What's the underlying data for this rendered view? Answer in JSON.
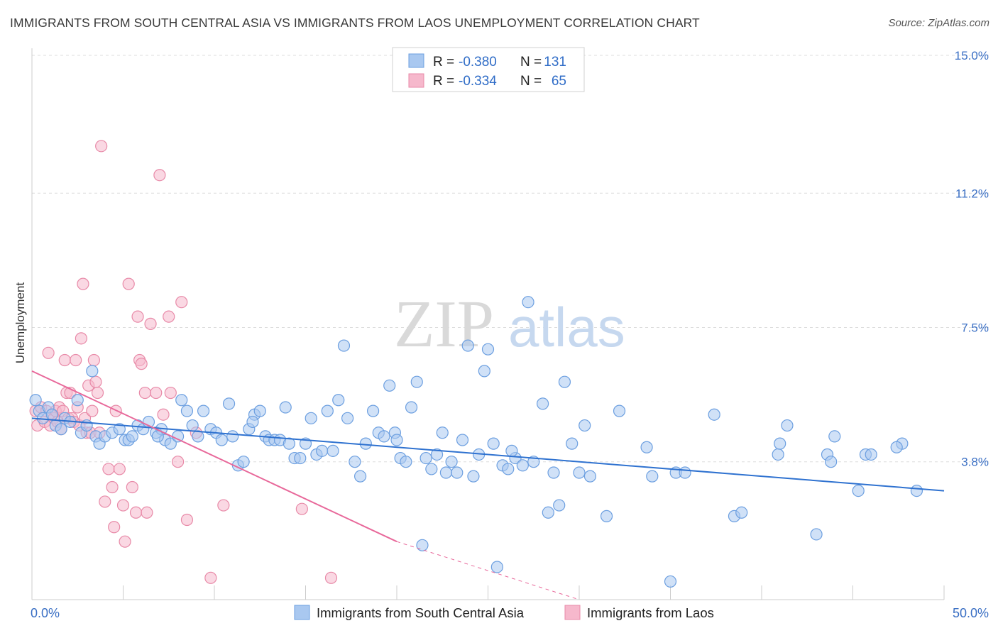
{
  "title": "IMMIGRANTS FROM SOUTH CENTRAL ASIA VS IMMIGRANTS FROM LAOS UNEMPLOYMENT CORRELATION CHART",
  "source": "Source: ZipAtlas.com",
  "watermark": {
    "zip": "ZIP",
    "atlas": "atlas"
  },
  "legend_top": [
    {
      "r_label": "R =",
      "r_value": "-0.380",
      "n_label": "N =",
      "n_value": "131"
    },
    {
      "r_label": "R =",
      "r_value": "-0.334",
      "n_label": "N =",
      "n_value": "65"
    }
  ],
  "colors": {
    "blue_fill": "#a9c8f0",
    "blue_stroke": "#6c9fe0",
    "blue_line": "#2f72d0",
    "pink_fill": "#f6b8cc",
    "pink_stroke": "#e88aa8",
    "pink_line": "#e8689a",
    "grid": "#dddddd",
    "tick_text": "#3a6fc4"
  },
  "chart_data": {
    "type": "scatter",
    "title": "IMMIGRANTS FROM SOUTH CENTRAL ASIA VS IMMIGRANTS FROM LAOS UNEMPLOYMENT CORRELATION CHART",
    "xlabel": "",
    "ylabel": "Unemployment",
    "xlim": [
      0,
      50
    ],
    "ylim": [
      0,
      15.0
    ],
    "x_tick_labels": [
      "0.0%",
      "50.0%"
    ],
    "y_ticks": [
      3.8,
      7.5,
      11.2,
      15.0
    ],
    "y_tick_labels": [
      "3.8%",
      "7.5%",
      "11.2%",
      "15.0%"
    ],
    "grid": true,
    "legend_position": "bottom",
    "series": [
      {
        "name": "Immigrants from South Central Asia",
        "color": "#a9c8f0",
        "trend": {
          "x0": 0,
          "y0": 5.0,
          "x1": 50,
          "y1": 3.0
        },
        "points": [
          [
            0.4,
            5.2
          ],
          [
            0.6,
            5.0
          ],
          [
            0.9,
            5.3
          ],
          [
            1.1,
            5.1
          ],
          [
            1.3,
            4.8
          ],
          [
            1.6,
            4.7
          ],
          [
            1.8,
            5.0
          ],
          [
            2.1,
            4.9
          ],
          [
            2.5,
            5.5
          ],
          [
            2.7,
            4.6
          ],
          [
            3.0,
            4.8
          ],
          [
            3.3,
            6.3
          ],
          [
            3.5,
            4.5
          ],
          [
            3.7,
            4.3
          ],
          [
            4.0,
            4.5
          ],
          [
            4.4,
            4.6
          ],
          [
            4.8,
            4.7
          ],
          [
            5.1,
            4.4
          ],
          [
            5.3,
            4.4
          ],
          [
            5.5,
            4.5
          ],
          [
            5.8,
            4.8
          ],
          [
            6.1,
            4.7
          ],
          [
            6.4,
            4.9
          ],
          [
            6.8,
            4.6
          ],
          [
            7.1,
            4.7
          ],
          [
            7.3,
            4.4
          ],
          [
            7.6,
            4.3
          ],
          [
            8.0,
            4.5
          ],
          [
            8.2,
            5.5
          ],
          [
            8.5,
            5.2
          ],
          [
            8.8,
            4.8
          ],
          [
            9.1,
            4.5
          ],
          [
            9.4,
            5.2
          ],
          [
            9.8,
            4.7
          ],
          [
            10.1,
            4.6
          ],
          [
            10.4,
            4.4
          ],
          [
            10.8,
            5.4
          ],
          [
            11.0,
            4.5
          ],
          [
            11.3,
            3.7
          ],
          [
            11.6,
            3.8
          ],
          [
            11.9,
            4.7
          ],
          [
            12.2,
            5.1
          ],
          [
            12.5,
            5.2
          ],
          [
            12.8,
            4.5
          ],
          [
            13.0,
            4.4
          ],
          [
            13.3,
            4.4
          ],
          [
            13.6,
            4.4
          ],
          [
            13.9,
            5.3
          ],
          [
            14.1,
            4.3
          ],
          [
            14.4,
            3.9
          ],
          [
            14.7,
            3.9
          ],
          [
            15.0,
            4.3
          ],
          [
            15.3,
            5.0
          ],
          [
            15.6,
            4.0
          ],
          [
            15.9,
            4.1
          ],
          [
            16.2,
            5.2
          ],
          [
            16.5,
            4.1
          ],
          [
            16.8,
            5.5
          ],
          [
            17.1,
            7.0
          ],
          [
            17.3,
            5.0
          ],
          [
            17.7,
            3.8
          ],
          [
            18.0,
            3.4
          ],
          [
            18.3,
            4.3
          ],
          [
            18.7,
            5.2
          ],
          [
            19.0,
            4.6
          ],
          [
            19.3,
            4.5
          ],
          [
            19.6,
            5.9
          ],
          [
            19.9,
            4.6
          ],
          [
            20.2,
            3.9
          ],
          [
            20.5,
            3.8
          ],
          [
            20.8,
            5.3
          ],
          [
            21.1,
            6.0
          ],
          [
            21.4,
            1.5
          ],
          [
            21.6,
            3.9
          ],
          [
            21.9,
            3.6
          ],
          [
            22.2,
            4.0
          ],
          [
            22.5,
            4.6
          ],
          [
            22.7,
            3.5
          ],
          [
            23.0,
            3.8
          ],
          [
            23.3,
            3.5
          ],
          [
            23.6,
            4.4
          ],
          [
            23.9,
            7.0
          ],
          [
            24.2,
            3.4
          ],
          [
            24.5,
            4.0
          ],
          [
            24.8,
            6.3
          ],
          [
            25.0,
            6.9
          ],
          [
            25.3,
            4.3
          ],
          [
            25.5,
            0.9
          ],
          [
            25.8,
            3.7
          ],
          [
            26.1,
            3.6
          ],
          [
            26.5,
            3.9
          ],
          [
            26.9,
            3.7
          ],
          [
            27.2,
            8.2
          ],
          [
            27.5,
            3.8
          ],
          [
            28.0,
            5.4
          ],
          [
            28.3,
            2.4
          ],
          [
            28.6,
            3.5
          ],
          [
            28.9,
            2.6
          ],
          [
            29.2,
            6.0
          ],
          [
            29.6,
            4.3
          ],
          [
            30.0,
            3.5
          ],
          [
            30.3,
            4.8
          ],
          [
            30.6,
            3.4
          ],
          [
            31.5,
            2.3
          ],
          [
            32.2,
            5.2
          ],
          [
            33.7,
            4.2
          ],
          [
            34.0,
            3.4
          ],
          [
            35.0,
            0.5
          ],
          [
            35.3,
            3.5
          ],
          [
            35.8,
            3.5
          ],
          [
            37.4,
            5.1
          ],
          [
            38.5,
            2.3
          ],
          [
            38.9,
            2.4
          ],
          [
            40.9,
            4.0
          ],
          [
            41.0,
            4.3
          ],
          [
            41.4,
            4.8
          ],
          [
            43.0,
            1.8
          ],
          [
            43.6,
            4.0
          ],
          [
            43.8,
            3.8
          ],
          [
            44.0,
            4.5
          ],
          [
            45.3,
            3.0
          ],
          [
            45.7,
            4.0
          ],
          [
            46.0,
            4.0
          ],
          [
            47.7,
            4.3
          ],
          [
            48.5,
            3.0
          ],
          [
            47.4,
            4.2
          ],
          [
            26.3,
            4.1
          ],
          [
            20.0,
            4.4
          ],
          [
            6.9,
            4.5
          ],
          [
            12.1,
            4.9
          ],
          [
            0.2,
            5.5
          ]
        ]
      },
      {
        "name": "Immigrants from Laos",
        "color": "#f6b8cc",
        "trend": {
          "x0": 0,
          "y0": 6.3,
          "x1": 20,
          "y1": 1.6,
          "x_dash_end": 30,
          "y_dash_end": 0
        },
        "points": [
          [
            0.2,
            5.2
          ],
          [
            0.3,
            4.8
          ],
          [
            0.5,
            5.3
          ],
          [
            0.7,
            4.9
          ],
          [
            0.8,
            5.2
          ],
          [
            1.0,
            4.8
          ],
          [
            1.1,
            5.1
          ],
          [
            1.2,
            5.0
          ],
          [
            1.3,
            5.2
          ],
          [
            1.4,
            4.9
          ],
          [
            1.5,
            5.3
          ],
          [
            1.6,
            4.7
          ],
          [
            1.7,
            5.2
          ],
          [
            1.8,
            6.6
          ],
          [
            1.9,
            5.7
          ],
          [
            2.0,
            5.0
          ],
          [
            2.1,
            5.7
          ],
          [
            2.2,
            5.0
          ],
          [
            2.3,
            4.9
          ],
          [
            2.4,
            6.6
          ],
          [
            2.5,
            5.3
          ],
          [
            2.6,
            4.8
          ],
          [
            2.7,
            7.2
          ],
          [
            2.8,
            8.7
          ],
          [
            2.9,
            5.0
          ],
          [
            3.0,
            4.6
          ],
          [
            3.1,
            5.9
          ],
          [
            3.2,
            4.6
          ],
          [
            3.3,
            5.2
          ],
          [
            3.4,
            6.6
          ],
          [
            3.5,
            6.0
          ],
          [
            3.6,
            5.7
          ],
          [
            3.7,
            4.6
          ],
          [
            3.8,
            12.5
          ],
          [
            4.0,
            2.7
          ],
          [
            4.2,
            3.6
          ],
          [
            4.4,
            3.1
          ],
          [
            4.5,
            2.0
          ],
          [
            4.6,
            5.2
          ],
          [
            4.8,
            3.6
          ],
          [
            5.0,
            2.6
          ],
          [
            5.1,
            1.6
          ],
          [
            5.3,
            8.7
          ],
          [
            5.5,
            3.1
          ],
          [
            5.7,
            2.4
          ],
          [
            5.8,
            7.8
          ],
          [
            5.9,
            6.6
          ],
          [
            6.0,
            6.5
          ],
          [
            6.2,
            5.7
          ],
          [
            6.3,
            2.4
          ],
          [
            6.5,
            7.6
          ],
          [
            6.8,
            5.7
          ],
          [
            7.0,
            11.7
          ],
          [
            7.2,
            5.1
          ],
          [
            7.5,
            7.8
          ],
          [
            7.6,
            5.7
          ],
          [
            8.0,
            3.8
          ],
          [
            8.2,
            8.2
          ],
          [
            8.5,
            2.2
          ],
          [
            9.0,
            4.6
          ],
          [
            9.8,
            0.6
          ],
          [
            10.5,
            2.6
          ],
          [
            14.8,
            2.5
          ],
          [
            16.4,
            0.6
          ],
          [
            0.9,
            6.8
          ]
        ]
      }
    ]
  },
  "bottom_legend": [
    "Immigrants from South Central Asia",
    "Immigrants from Laos"
  ]
}
